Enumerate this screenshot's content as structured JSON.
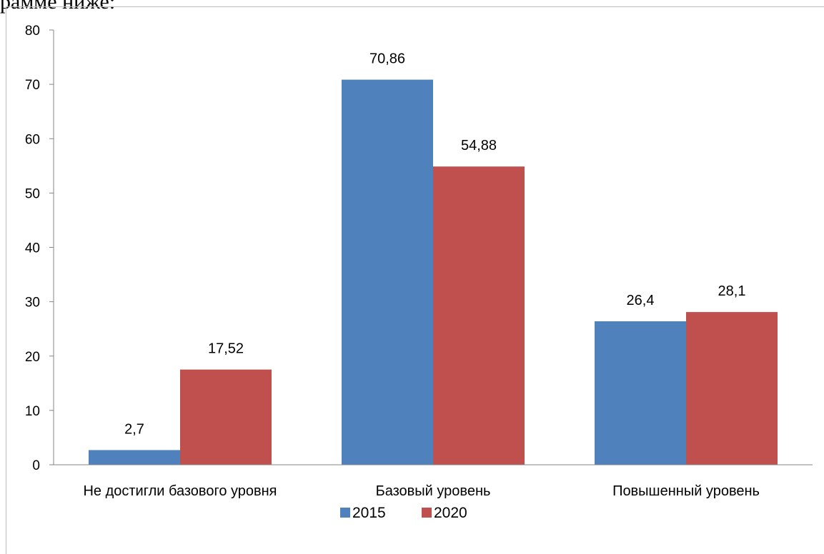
{
  "page": {
    "top_text": "рамме ниже:"
  },
  "chart_data": {
    "type": "bar",
    "categories": [
      "Не достигли базового уровня",
      "Базовый уровень",
      "Повышенный уровень"
    ],
    "series": [
      {
        "name": "2015",
        "values": [
          2.7,
          70.86,
          26.4
        ],
        "labels": [
          "2,7",
          "70,86",
          "26,4"
        ],
        "color": "#4f81bd"
      },
      {
        "name": "2020",
        "values": [
          17.52,
          54.88,
          28.1
        ],
        "labels": [
          "17,52",
          "54,88",
          "28,1"
        ],
        "color": "#c0504d"
      }
    ],
    "ylim": [
      0,
      80
    ],
    "yticks": [
      0,
      10,
      20,
      30,
      40,
      50,
      60,
      70,
      80
    ],
    "grid": false,
    "legend": "bottom"
  }
}
